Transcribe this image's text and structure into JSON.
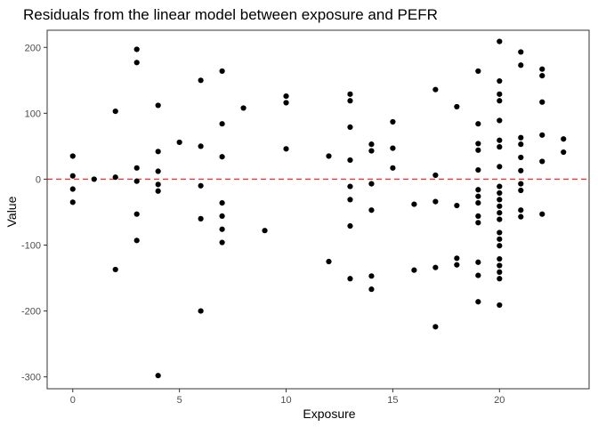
{
  "chart_data": {
    "type": "scatter",
    "title": "Residuals from the linear model between exposure and PEFR",
    "xlabel": "Exposure",
    "ylabel": "Value",
    "xlim": [
      -1.2,
      24.2
    ],
    "ylim": [
      -318,
      226
    ],
    "xticks": [
      0,
      5,
      10,
      15,
      20
    ],
    "yticks": [
      -300,
      -200,
      -100,
      0,
      100,
      200
    ],
    "grid": false,
    "reference_line": {
      "y": 0,
      "style": "dashed",
      "color": "#e8393a"
    },
    "point_color": "#000000",
    "points": [
      [
        0,
        35
      ],
      [
        0,
        5
      ],
      [
        0,
        -15
      ],
      [
        0,
        -35
      ],
      [
        1,
        0
      ],
      [
        2,
        103
      ],
      [
        2,
        3
      ],
      [
        2,
        -137
      ],
      [
        3,
        197
      ],
      [
        3,
        177
      ],
      [
        3,
        17
      ],
      [
        3,
        -3
      ],
      [
        3,
        -53
      ],
      [
        3,
        -93
      ],
      [
        4,
        112
      ],
      [
        4,
        42
      ],
      [
        4,
        12
      ],
      [
        4,
        -8
      ],
      [
        4,
        -18
      ],
      [
        4,
        -298
      ],
      [
        5,
        56
      ],
      [
        6,
        150
      ],
      [
        6,
        50
      ],
      [
        6,
        -10
      ],
      [
        6,
        -60
      ],
      [
        6,
        -200
      ],
      [
        7,
        164
      ],
      [
        7,
        84
      ],
      [
        7,
        34
      ],
      [
        7,
        -36
      ],
      [
        7,
        -56
      ],
      [
        7,
        -76
      ],
      [
        7,
        -96
      ],
      [
        8,
        108
      ],
      [
        9,
        -78
      ],
      [
        10,
        126
      ],
      [
        10,
        116
      ],
      [
        10,
        46
      ],
      [
        12,
        35
      ],
      [
        12,
        -125
      ],
      [
        13,
        129
      ],
      [
        13,
        119
      ],
      [
        13,
        79
      ],
      [
        13,
        29
      ],
      [
        13,
        -11
      ],
      [
        13,
        -31
      ],
      [
        13,
        -71
      ],
      [
        13,
        -151
      ],
      [
        14,
        53
      ],
      [
        14,
        43
      ],
      [
        14,
        -7
      ],
      [
        14,
        -47
      ],
      [
        14,
        -147
      ],
      [
        14,
        -167
      ],
      [
        15,
        87
      ],
      [
        15,
        47
      ],
      [
        15,
        17
      ],
      [
        16,
        -38
      ],
      [
        16,
        -138
      ],
      [
        17,
        136
      ],
      [
        17,
        6
      ],
      [
        17,
        -34
      ],
      [
        17,
        -134
      ],
      [
        17,
        -224
      ],
      [
        18,
        110
      ],
      [
        18,
        -40
      ],
      [
        18,
        -120
      ],
      [
        18,
        -130
      ],
      [
        19,
        164
      ],
      [
        19,
        84
      ],
      [
        19,
        54
      ],
      [
        19,
        44
      ],
      [
        19,
        14
      ],
      [
        19,
        -16
      ],
      [
        19,
        -26
      ],
      [
        19,
        -36
      ],
      [
        19,
        -56
      ],
      [
        19,
        -66
      ],
      [
        19,
        -126
      ],
      [
        19,
        -146
      ],
      [
        19,
        -186
      ],
      [
        20,
        209
      ],
      [
        20,
        149
      ],
      [
        20,
        129
      ],
      [
        20,
        119
      ],
      [
        20,
        89
      ],
      [
        20,
        59
      ],
      [
        20,
        49
      ],
      [
        20,
        19
      ],
      [
        20,
        -11
      ],
      [
        20,
        -21
      ],
      [
        20,
        -31
      ],
      [
        20,
        -41
      ],
      [
        20,
        -51
      ],
      [
        20,
        -61
      ],
      [
        20,
        -81
      ],
      [
        20,
        -91
      ],
      [
        20,
        -101
      ],
      [
        20,
        -121
      ],
      [
        20,
        -131
      ],
      [
        20,
        -141
      ],
      [
        20,
        -151
      ],
      [
        20,
        -191
      ],
      [
        21,
        193
      ],
      [
        21,
        173
      ],
      [
        21,
        63
      ],
      [
        21,
        53
      ],
      [
        21,
        33
      ],
      [
        21,
        13
      ],
      [
        21,
        -7
      ],
      [
        21,
        -17
      ],
      [
        21,
        -47
      ],
      [
        21,
        -57
      ],
      [
        22,
        167
      ],
      [
        22,
        157
      ],
      [
        22,
        117
      ],
      [
        22,
        67
      ],
      [
        22,
        27
      ],
      [
        22,
        -53
      ],
      [
        23,
        61
      ],
      [
        23,
        41
      ]
    ]
  }
}
